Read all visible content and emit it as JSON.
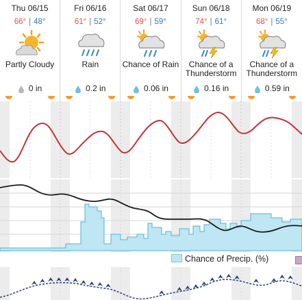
{
  "days": [
    {
      "date": "Thu 06/15",
      "hi": "66°",
      "lo": "48°",
      "condition": "Partly Cloudy",
      "precip": "0 in",
      "icon": "partly-cloudy-icon"
    },
    {
      "date": "Fri 06/16",
      "hi": "61°",
      "lo": "52°",
      "condition": "Rain",
      "precip": "0.2 in",
      "icon": "rain-icon"
    },
    {
      "date": "Sat 06/17",
      "hi": "69°",
      "lo": "59°",
      "condition": "Chance of Rain",
      "precip": "0.06 in",
      "icon": "chance-rain-icon"
    },
    {
      "date": "Sun 06/18",
      "hi": "74°",
      "lo": "61°",
      "condition": "Chance of a Thunderstorm",
      "precip": "0.16 in",
      "icon": "thunderstorm-icon"
    },
    {
      "date": "Mon 06/19",
      "hi": "68°",
      "lo": "55°",
      "condition": "Chance of a Thunderstorm",
      "precip": "0.59 in",
      "icon": "thunderstorm-icon"
    }
  ],
  "legend": {
    "precip_label": "Chance of Precip. (%)"
  },
  "colors": {
    "temp_line": "#c4323b",
    "dew_line": "#1a1a1a",
    "precip_fill": "#bfe6f3",
    "precip_stroke": "#4fb3d9",
    "wind": "#2a3f7a",
    "night_band": "#ececec",
    "hi": "#d9534f",
    "lo": "#2f7bbf"
  }
}
